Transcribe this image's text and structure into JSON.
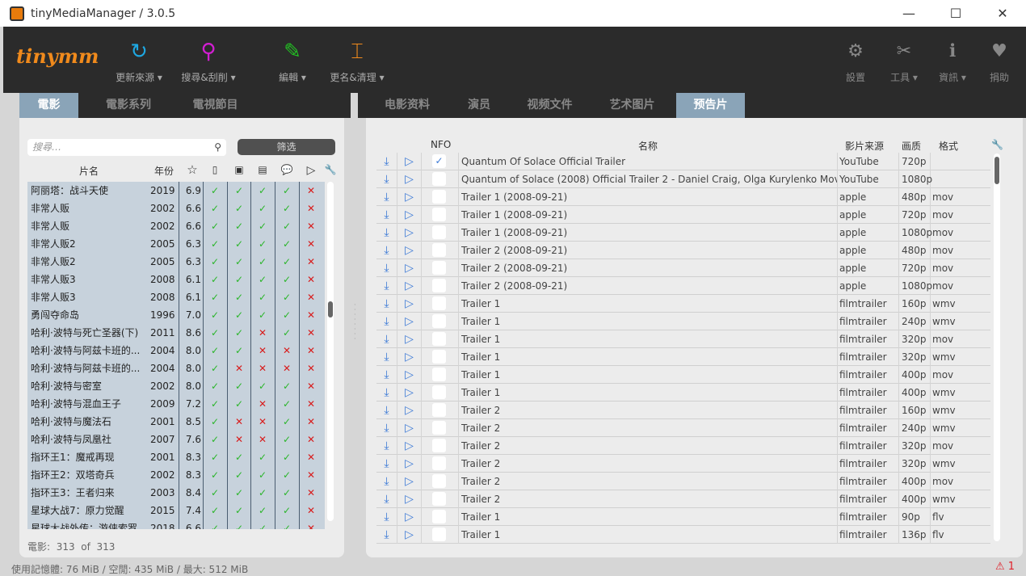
{
  "window": {
    "title": "tinyMediaManager / 3.0.5",
    "minimize": "—",
    "maximize": "☐",
    "close": "✕"
  },
  "toolbar": {
    "logo": "tinymm",
    "items": [
      {
        "label": "更新來源 ▾",
        "icon": "refresh-icon",
        "glyph": "↻",
        "color": "#1ea7e1"
      },
      {
        "label": "搜尋&刮削 ▾",
        "icon": "search-icon",
        "glyph": "⚲",
        "color": "#d21ed2"
      },
      {
        "label": "編輯 ▾",
        "icon": "edit-icon",
        "glyph": "✎",
        "color": "#22c022"
      },
      {
        "label": "更名&清理 ▾",
        "icon": "rename-icon",
        "glyph": "⌶",
        "color": "#f08a1c"
      }
    ],
    "right": [
      {
        "label": "設置",
        "icon": "gear-icon",
        "glyph": "⚙"
      },
      {
        "label": "工具 ▾",
        "icon": "tools-icon",
        "glyph": "✂"
      },
      {
        "label": "資訊 ▾",
        "icon": "info-icon",
        "glyph": "ℹ"
      },
      {
        "label": "捐助",
        "icon": "heart-icon",
        "glyph": "♥"
      }
    ]
  },
  "left_tabs": [
    "電影",
    "電影系列",
    "電視節目"
  ],
  "right_tabs": [
    "电影资料",
    "演员",
    "视频文件",
    "艺术图片",
    "预告片"
  ],
  "search": {
    "placeholder": "搜尋…"
  },
  "filter_label": "筛选",
  "movie_headers": {
    "title": "片名",
    "year": "年份"
  },
  "movies": [
    [
      "阿丽塔：战斗天使",
      "2019",
      "6.9",
      "11110"
    ],
    [
      "非常人贩",
      "2002",
      "6.6",
      "11110"
    ],
    [
      "非常人贩",
      "2002",
      "6.6",
      "11110"
    ],
    [
      "非常人贩2",
      "2005",
      "6.3",
      "11110"
    ],
    [
      "非常人贩2",
      "2005",
      "6.3",
      "11110"
    ],
    [
      "非常人贩3",
      "2008",
      "6.1",
      "11110"
    ],
    [
      "非常人贩3",
      "2008",
      "6.1",
      "11110"
    ],
    [
      "勇闯夺命岛",
      "1996",
      "7.0",
      "11110"
    ],
    [
      "哈利·波特与死亡圣器(下)",
      "2011",
      "8.6",
      "11010"
    ],
    [
      "哈利·波特与阿兹卡班的...",
      "2004",
      "8.0",
      "11000"
    ],
    [
      "哈利·波特与阿兹卡班的...",
      "2004",
      "8.0",
      "10000"
    ],
    [
      "哈利·波特与密室",
      "2002",
      "8.0",
      "11110"
    ],
    [
      "哈利·波特与混血王子",
      "2009",
      "7.2",
      "11010"
    ],
    [
      "哈利·波特与魔法石",
      "2001",
      "8.5",
      "10010"
    ],
    [
      "哈利·波特与凤凰社",
      "2007",
      "7.6",
      "10010"
    ],
    [
      "指环王1：魔戒再现",
      "2001",
      "8.3",
      "11110"
    ],
    [
      "指环王2：双塔奇兵",
      "2002",
      "8.3",
      "11110"
    ],
    [
      "指环王3：王者归来",
      "2003",
      "8.4",
      "11110"
    ],
    [
      "星球大战7：原力觉醒",
      "2015",
      "7.4",
      "11110"
    ],
    [
      "星球大战外传：游侠索罗",
      "2018",
      "6.6",
      "11110"
    ]
  ],
  "movie_count": {
    "label": "電影:",
    "shown": "313",
    "of": "of",
    "total": "313"
  },
  "trailer_headers": {
    "nfo": "NFO",
    "name": "名称",
    "source": "影片来源",
    "quality": "画质",
    "format": "格式"
  },
  "trailers": [
    [
      "1",
      "Quantum Of Solace Official Trailer",
      "YouTube",
      "720p",
      ""
    ],
    [
      "0",
      "Quantum of Solace (2008) Official Trailer 2 - Daniel Craig, Olga Kurylenko Movie HD",
      "YouTube",
      "1080p",
      ""
    ],
    [
      "0",
      "Trailer 1 (2008-09-21)",
      "apple",
      "480p",
      "mov"
    ],
    [
      "0",
      "Trailer 1 (2008-09-21)",
      "apple",
      "720p",
      "mov"
    ],
    [
      "0",
      "Trailer 1 (2008-09-21)",
      "apple",
      "1080p",
      "mov"
    ],
    [
      "0",
      "Trailer 2 (2008-09-21)",
      "apple",
      "480p",
      "mov"
    ],
    [
      "0",
      "Trailer 2 (2008-09-21)",
      "apple",
      "720p",
      "mov"
    ],
    [
      "0",
      "Trailer 2 (2008-09-21)",
      "apple",
      "1080p",
      "mov"
    ],
    [
      "0",
      "Trailer 1",
      "filmtrailer",
      "160p",
      "wmv"
    ],
    [
      "0",
      "Trailer 1",
      "filmtrailer",
      "240p",
      "wmv"
    ],
    [
      "0",
      "Trailer 1",
      "filmtrailer",
      "320p",
      "mov"
    ],
    [
      "0",
      "Trailer 1",
      "filmtrailer",
      "320p",
      "wmv"
    ],
    [
      "0",
      "Trailer 1",
      "filmtrailer",
      "400p",
      "mov"
    ],
    [
      "0",
      "Trailer 1",
      "filmtrailer",
      "400p",
      "wmv"
    ],
    [
      "0",
      "Trailer 2",
      "filmtrailer",
      "160p",
      "wmv"
    ],
    [
      "0",
      "Trailer 2",
      "filmtrailer",
      "240p",
      "wmv"
    ],
    [
      "0",
      "Trailer 2",
      "filmtrailer",
      "320p",
      "mov"
    ],
    [
      "0",
      "Trailer 2",
      "filmtrailer",
      "320p",
      "wmv"
    ],
    [
      "0",
      "Trailer 2",
      "filmtrailer",
      "400p",
      "mov"
    ],
    [
      "0",
      "Trailer 2",
      "filmtrailer",
      "400p",
      "wmv"
    ],
    [
      "0",
      "Trailer 1",
      "filmtrailer",
      "90p",
      "flv"
    ],
    [
      "0",
      "Trailer 1",
      "filmtrailer",
      "136p",
      "flv"
    ]
  ],
  "status": {
    "memory": "使用記憶體:  76 MiB  /  空閒:  435 MiB  /  最大:  512 MiB",
    "warnings": "⚠ 1"
  },
  "colors": {
    "ok": "#2bb52b",
    "missing": "#d81c1c",
    "accent": "#8aa4b8",
    "link": "#3d7ad6"
  }
}
